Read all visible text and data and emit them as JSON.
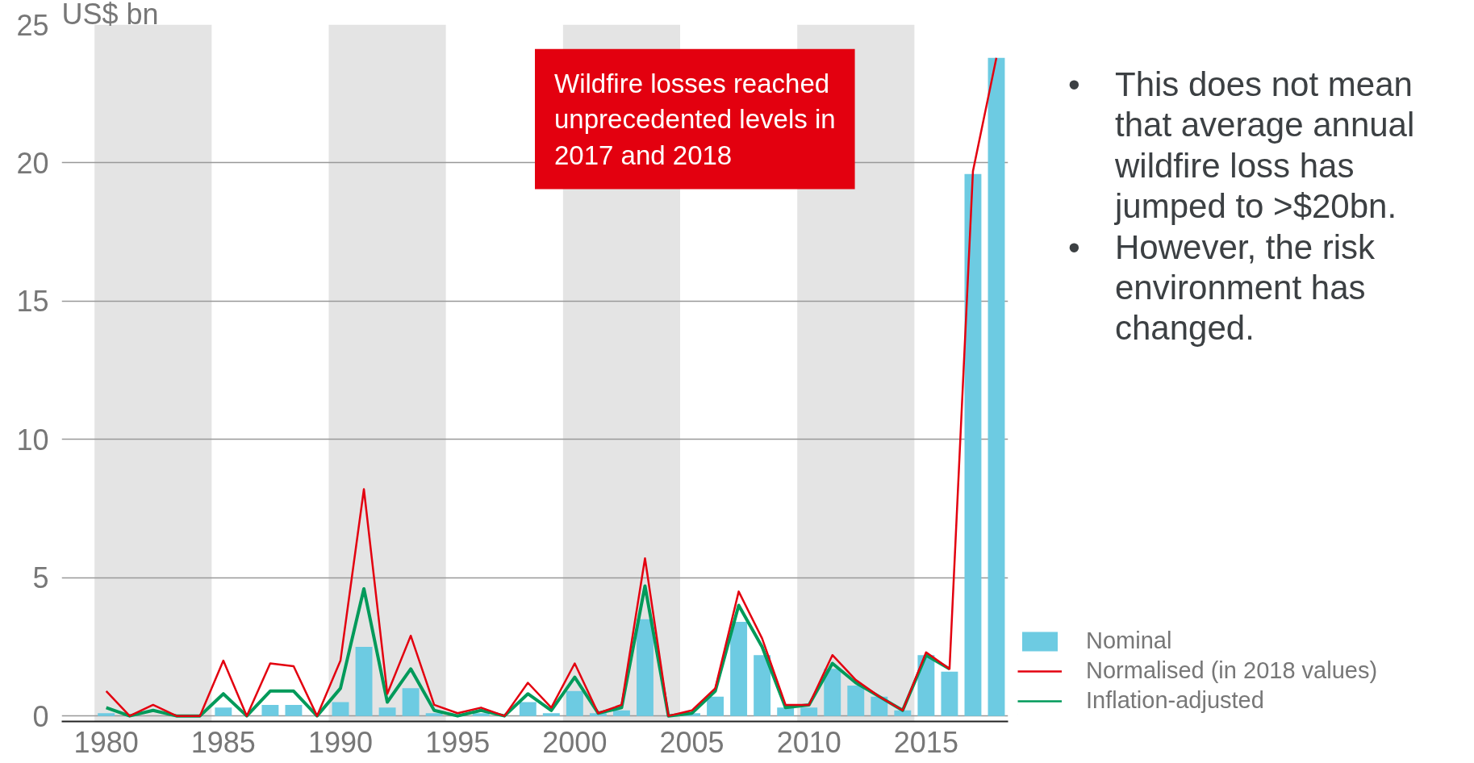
{
  "chart_data": {
    "type": "bar",
    "ylabel": "US$ bn",
    "x": [
      1980,
      1981,
      1982,
      1983,
      1984,
      1985,
      1986,
      1987,
      1988,
      1989,
      1990,
      1991,
      1992,
      1993,
      1994,
      1995,
      1996,
      1997,
      1998,
      1999,
      2000,
      2001,
      2002,
      2003,
      2004,
      2005,
      2006,
      2007,
      2008,
      2009,
      2010,
      2011,
      2012,
      2013,
      2014,
      2015,
      2016,
      2017,
      2018
    ],
    "series": [
      {
        "name": "Nominal",
        "color": "#6dcbe2",
        "values": [
          0.1,
          0,
          0,
          0,
          0,
          0.3,
          0,
          0.4,
          0.4,
          0,
          0.5,
          2.5,
          0.3,
          1.0,
          0.1,
          0,
          0.1,
          0,
          0.5,
          0.1,
          0.9,
          0.1,
          0.2,
          3.5,
          0,
          0.1,
          0.7,
          3.4,
          2.2,
          0.3,
          0.3,
          1.7,
          1.1,
          0.7,
          0.2,
          2.2,
          1.6,
          19.6,
          23.8
        ]
      },
      {
        "name": "Normalised (in 2018 values)",
        "type": "line",
        "color": "#e3000f",
        "values": [
          0.9,
          0,
          0.4,
          0,
          0,
          2.0,
          0,
          1.9,
          1.8,
          0,
          2.0,
          8.2,
          0.8,
          2.9,
          0.4,
          0.1,
          0.3,
          0,
          1.2,
          0.3,
          1.9,
          0.1,
          0.4,
          5.7,
          0,
          0.2,
          1.0,
          4.5,
          2.8,
          0.4,
          0.4,
          2.2,
          1.3,
          0.7,
          0.2,
          2.3,
          1.7,
          19.7,
          23.8
        ]
      },
      {
        "name": "Inflation-adjusted",
        "type": "line",
        "color": "#009a5a",
        "values": [
          0.3,
          0,
          0.2,
          0,
          0,
          0.8,
          0,
          0.9,
          0.9,
          0,
          1.0,
          4.6,
          0.5,
          1.7,
          0.2,
          0,
          0.2,
          0,
          0.8,
          0.2,
          1.4,
          0.1,
          0.3,
          4.7,
          0,
          0.1,
          0.9,
          4.0,
          2.5,
          0.3,
          0.4,
          1.9,
          1.2,
          0.7,
          0.2,
          2.2,
          1.7,
          null,
          null
        ]
      }
    ],
    "xlim": [
      1978.1,
      2018.5
    ],
    "ylim": [
      -0.2,
      25
    ],
    "xticks": [
      1980,
      1985,
      1990,
      1995,
      2000,
      2005,
      2010,
      2015
    ],
    "yticks": [
      0,
      5,
      10,
      15,
      20,
      25
    ],
    "bands": [
      {
        "axis": "x",
        "from": 1979.5,
        "to": 1984.5,
        "color": "#e4e4e4"
      },
      {
        "axis": "x",
        "from": 1989.5,
        "to": 1994.5,
        "color": "#e4e4e4"
      },
      {
        "axis": "x",
        "from": 1999.5,
        "to": 2004.5,
        "color": "#e4e4e4"
      },
      {
        "axis": "x",
        "from": 2009.5,
        "to": 2014.5,
        "color": "#e4e4e4"
      }
    ],
    "annotations": [
      "Wildfire losses reached unprecedented levels in 2017 and 2018",
      "• This does not mean that average annual wildfire loss has jumped to >$20bn.",
      "• However, the risk environment has changed."
    ],
    "grid": "y",
    "legend": "bottom right"
  }
}
